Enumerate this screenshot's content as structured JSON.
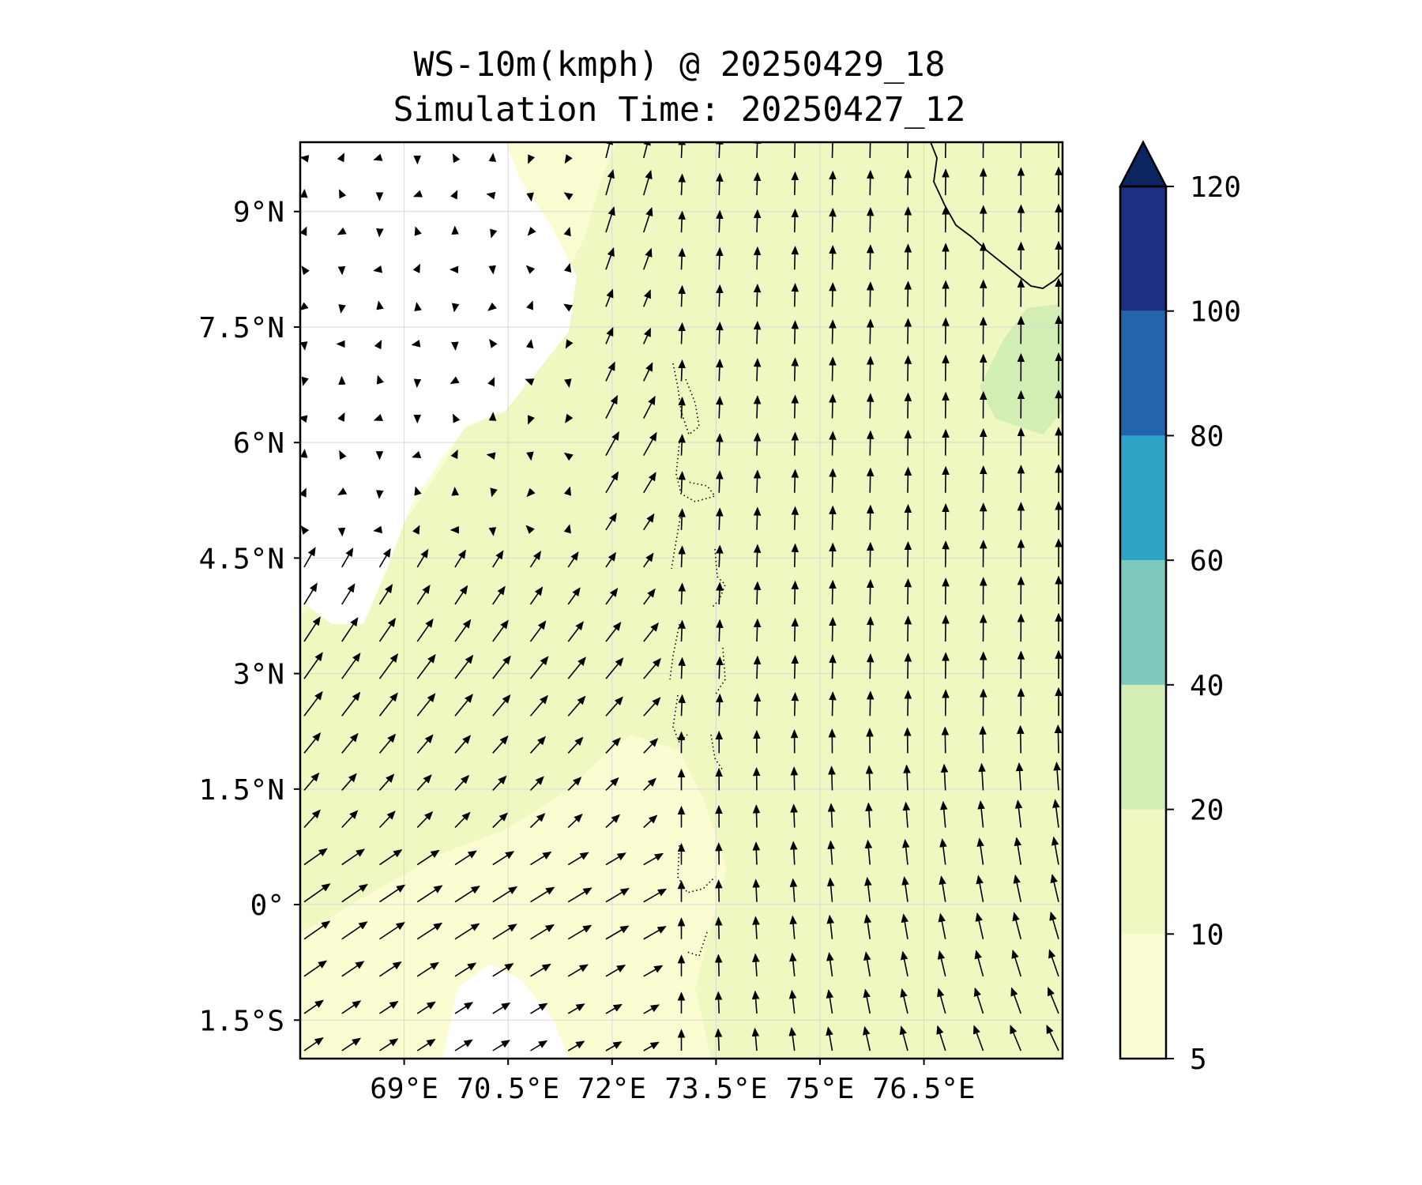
{
  "title": {
    "line1": "WS-10m(kmph) @ 20250429_18",
    "line2": "Simulation Time: 20250427_12"
  },
  "map": {
    "lon_range": [
      67.5,
      78.5
    ],
    "lat_range": [
      -2.0,
      9.9
    ],
    "x_ticks": [
      {
        "value": 69.0,
        "label": "69°E"
      },
      {
        "value": 70.5,
        "label": "70.5°E"
      },
      {
        "value": 72.0,
        "label": "72°E"
      },
      {
        "value": 73.5,
        "label": "73.5°E"
      },
      {
        "value": 75.0,
        "label": "75°E"
      },
      {
        "value": 76.5,
        "label": "76.5°E"
      }
    ],
    "y_ticks": [
      {
        "value": 9.0,
        "label": "9°N"
      },
      {
        "value": 7.5,
        "label": "7.5°N"
      },
      {
        "value": 6.0,
        "label": "6°N"
      },
      {
        "value": 4.5,
        "label": "4.5°N"
      },
      {
        "value": 3.0,
        "label": "3°N"
      },
      {
        "value": 1.5,
        "label": "1.5°N"
      },
      {
        "value": 0.0,
        "label": "0°"
      },
      {
        "value": -1.5,
        "label": "1.5°S"
      }
    ],
    "gridlines": true,
    "vector_field": "10 m wind arrows, weak/variable in NW, westerly in SW, turning to southerly/southwesterly across the east",
    "colors": {
      "background_low": "#ffffff",
      "band_5_10": "#fcfcd3",
      "band_10_20": "#eef8c0"
    }
  },
  "colorbar": {
    "extend": "max",
    "extend_color": "#0c2460",
    "levels": [
      {
        "from": 5,
        "to": 10,
        "color": "#fcfcd3"
      },
      {
        "from": 10,
        "to": 20,
        "color": "#eef8c0"
      },
      {
        "from": 20,
        "to": 40,
        "color": "#d2eeb4"
      },
      {
        "from": 40,
        "to": 60,
        "color": "#7ec8bb"
      },
      {
        "from": 60,
        "to": 80,
        "color": "#2fa3c6"
      },
      {
        "from": 80,
        "to": 100,
        "color": "#2265ad"
      },
      {
        "from": 100,
        "to": 120,
        "color": "#1d2f83"
      }
    ],
    "tick_labels": [
      "5",
      "10",
      "20",
      "40",
      "60",
      "80",
      "100",
      "120"
    ]
  }
}
